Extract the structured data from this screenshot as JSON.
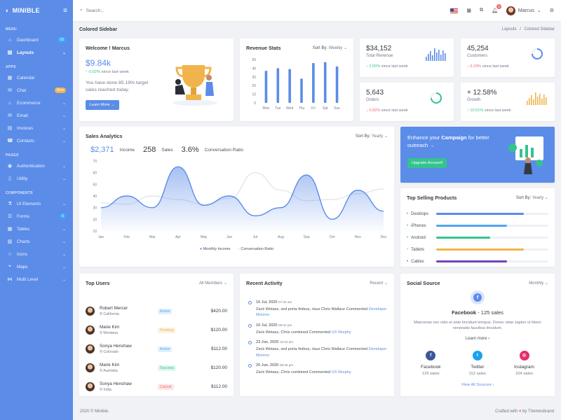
{
  "brand": {
    "name": "MINIBLE"
  },
  "menu": {
    "groups": [
      {
        "title": "MENU",
        "items": [
          {
            "label": "Dashboard",
            "icon": "home-icon",
            "badge": "03",
            "badge_color": "#3aa7ff"
          },
          {
            "label": "Layouts",
            "icon": "layout-icon",
            "active": true,
            "chev": true
          }
        ]
      },
      {
        "title": "APPS",
        "items": [
          {
            "label": "Calendar",
            "icon": "calendar-icon"
          },
          {
            "label": "Chat",
            "icon": "chat-icon",
            "badge": "New",
            "badge_color": "#f1b44c"
          },
          {
            "label": "Ecommerce",
            "icon": "store-icon",
            "chev": true
          },
          {
            "label": "Email",
            "icon": "envelope-icon",
            "chev": true
          },
          {
            "label": "Invoices",
            "icon": "invoice-icon",
            "chev": true
          },
          {
            "label": "Contacts",
            "icon": "contacts-icon",
            "chev": true
          }
        ]
      },
      {
        "title": "PAGES",
        "items": [
          {
            "label": "Authentication",
            "icon": "user-circle-icon",
            "chev": true
          },
          {
            "label": "Utility",
            "icon": "file-icon",
            "chev": true
          }
        ]
      },
      {
        "title": "COMPONENTS",
        "items": [
          {
            "label": "UI Elements",
            "icon": "flask-icon",
            "chev": true
          },
          {
            "label": "Forms",
            "icon": "list-icon",
            "badge": "6",
            "badge_color": "#3aa7ff"
          },
          {
            "label": "Tables",
            "icon": "table-icon",
            "chev": true
          },
          {
            "label": "Charts",
            "icon": "chart-icon",
            "chev": true
          },
          {
            "label": "Icons",
            "icon": "star-icon",
            "chev": true
          },
          {
            "label": "Maps",
            "icon": "map-icon",
            "chev": true
          },
          {
            "label": "Multi Level",
            "icon": "share-icon",
            "chev": true
          }
        ]
      }
    ]
  },
  "topbar": {
    "search_placeholder": "Search...",
    "user_name": "Marcus",
    "notif_count": "3"
  },
  "page": {
    "title": "Colored Sidebar",
    "breadcrumb_1": "Layouts",
    "breadcrumb_sep": "/",
    "breadcrumb_2": "Colored Sidebar"
  },
  "welcome": {
    "title": "Welcome ! Marcus",
    "value": "$9.84k",
    "change": "0.02%",
    "change_label": "since last week",
    "text": "You have done 85.19% target sales reached today.",
    "button": "Learn More",
    "button_arrow": "→"
  },
  "revenue": {
    "title": "Revenue Stats",
    "sort_label": "Sort By:",
    "sort_value": "Weekly",
    "chart_data": {
      "type": "bar",
      "categories": [
        "Mon",
        "Tue",
        "Wed",
        "Thu",
        "Fri",
        "Sat",
        "Sun"
      ],
      "values": [
        37,
        40,
        39,
        28,
        46,
        47,
        42
      ],
      "yticks": [
        0,
        10,
        20,
        30,
        40,
        50
      ],
      "ylim": [
        0,
        50
      ]
    }
  },
  "stats": [
    {
      "value": "$34,152",
      "label": "Total Revenue",
      "change": "2.65%",
      "dir": "up",
      "since": "since last week",
      "mini": "bars",
      "color": "#5b8ce8"
    },
    {
      "value": "45,254",
      "label": "Customers",
      "change": "6.24%",
      "dir": "down",
      "since": "since last week",
      "mini": "ring",
      "color": "#5b8ce8"
    },
    {
      "value": "5,643",
      "label": "Orders",
      "change": "0.82%",
      "dir": "down",
      "since": "since last week",
      "mini": "ring",
      "color": "#34c38f"
    },
    {
      "value": "+ 12.58%",
      "label": "Growth",
      "change": "10.51%",
      "dir": "up",
      "since": "since last week",
      "mini": "bars",
      "color": "#f1b44c"
    }
  ],
  "analytics": {
    "title": "Sales Analytics",
    "sort_label": "Sort By:",
    "sort_value": "Yearly",
    "kpis": [
      {
        "value": "$2,371",
        "label": "Income"
      },
      {
        "value": "258",
        "label": "Sales"
      },
      {
        "value": "3.6%",
        "label": "Conversation Ratio"
      }
    ],
    "legend": [
      "Monthly Income",
      "Conversation Ratio"
    ],
    "chart_data": {
      "type": "area",
      "x": [
        "Jan",
        "Feb",
        "Mar",
        "Apr",
        "May",
        "Jun",
        "Jul",
        "Aug",
        "Sep",
        "Oct",
        "Nov",
        "Dec"
      ],
      "yticks": [
        10,
        20,
        30,
        40,
        50,
        60,
        70
      ],
      "ylim": [
        10,
        70
      ],
      "series": [
        {
          "name": "Monthly Income",
          "values": [
            30,
            40,
            30,
            65,
            32,
            40,
            23,
            30,
            58,
            20,
            45,
            27
          ]
        },
        {
          "name": "Conversation Ratio",
          "values": [
            34,
            33,
            40,
            37,
            33,
            38,
            60,
            45,
            36,
            37,
            42,
            46
          ]
        }
      ]
    }
  },
  "campaign": {
    "text_1": "Enhance your ",
    "text_bold": "Campaign",
    "text_2": " for better outreach",
    "arrow": "→",
    "button": "Upgrade Account!"
  },
  "products": {
    "title": "Top Selling Products",
    "sort_label": "Sort By:",
    "sort_value": "Yearly",
    "items": [
      {
        "name": "Desktops",
        "pct": 78,
        "color": "#5b8ce8"
      },
      {
        "name": "iPhones",
        "pct": 63,
        "color": "#50a5f1"
      },
      {
        "name": "Android",
        "pct": 48,
        "color": "#34c38f"
      },
      {
        "name": "Tablets",
        "pct": 78,
        "color": "#f1b44c"
      },
      {
        "name": "Cables",
        "pct": 63,
        "color": "#6f42c1"
      }
    ]
  },
  "users": {
    "title": "Top Users",
    "filter": "All Members",
    "rows": [
      {
        "name": "Robert Mercer",
        "loc": "California",
        "status": "Active",
        "amount": "$420.00"
      },
      {
        "name": "Marie Kim",
        "loc": "Montana",
        "status": "Pending",
        "amount": "$120.00"
      },
      {
        "name": "Sonya Henshaw",
        "loc": "Colorado",
        "status": "Active",
        "amount": "$112.00"
      },
      {
        "name": "Marie Kim",
        "loc": "Australia",
        "status": "Success",
        "amount": "$120.00"
      },
      {
        "name": "Sonya Henshaw",
        "loc": "India",
        "status": "Cancel",
        "amount": "$112.00"
      }
    ]
  },
  "activity": {
    "title": "Recent Activity",
    "filter": "Recent",
    "items": [
      {
        "date": "16 Jul, 2020",
        "time": "07:34 am",
        "text": "Zack Wetass, sed porta finibus, risus Chris Wallace Commented",
        "link": "Developer Moreno"
      },
      {
        "date": "10 Jul, 2020",
        "time": "08:42 pm",
        "text": "Zack Wetass, Chris combined Commented",
        "link": "UX Murphy"
      },
      {
        "date": "23 Jun, 2020",
        "time": "12:22 am",
        "text": "Zack Wetass, sed porta finibus, risus Chris Wallace Commented",
        "link": "Developer Moreno"
      },
      {
        "date": "20 Jun, 2020",
        "time": "09:48 pm",
        "text": "Zack Wetass, Chris combined Commented",
        "link": "UX Murphy"
      }
    ]
  },
  "social": {
    "title": "Social Source",
    "filter": "Monthly",
    "headline": "Facebook",
    "headline_sales": "- 125 sales",
    "text": "Maecenas nec odio et ante tincidunt tempus. Donec vitae sapien ut libero venenatis faucibus tincidunt.",
    "learn": "Learn more",
    "view_all": "View All Sources",
    "sources": [
      {
        "name": "Facebook",
        "sales": "125 sales",
        "color": "#3b5998",
        "glyph": "f"
      },
      {
        "name": "Twitter",
        "sales": "112 sales",
        "color": "#1da1f2",
        "glyph": "t"
      },
      {
        "name": "Instagram",
        "sales": "104 sales",
        "color": "#e1306c",
        "glyph": "◎"
      }
    ]
  },
  "footer": {
    "left": "2020 © Minible.",
    "right_1": "Crafted with",
    "right_2": "by Themesbrand"
  }
}
